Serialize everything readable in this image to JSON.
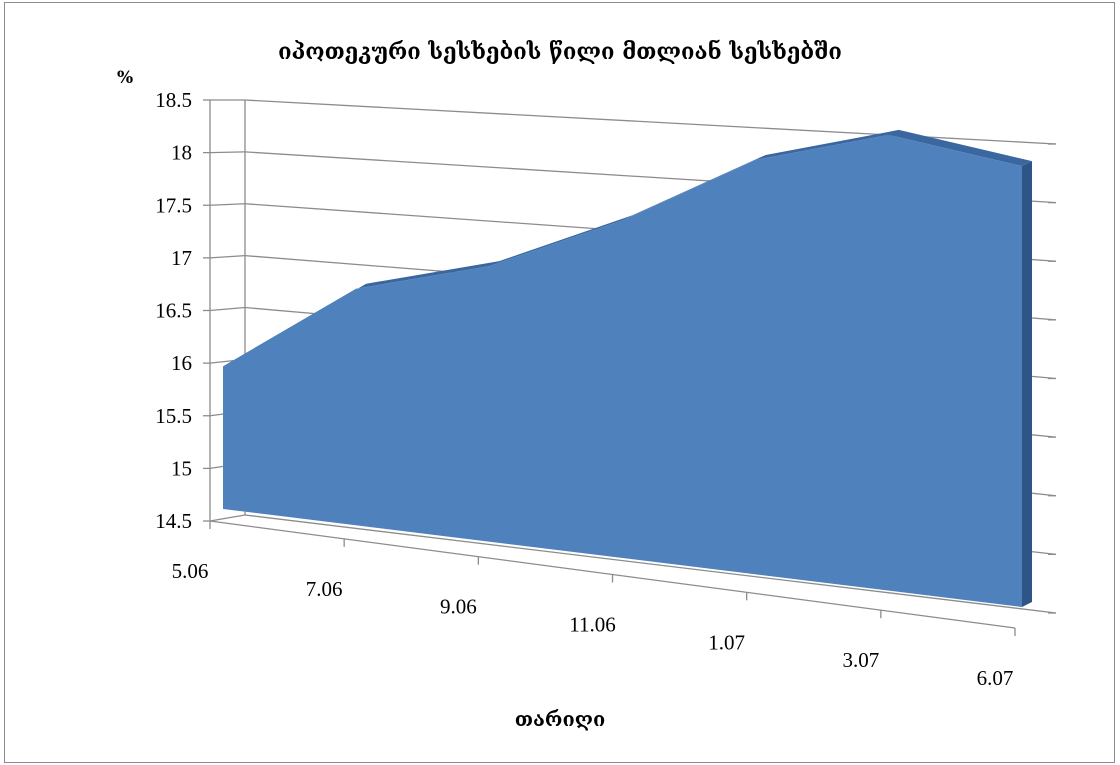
{
  "chart_data": {
    "type": "area",
    "title": "იპოთეკური სესხების წილი მთლიან სესხებში",
    "ylabel": "%",
    "xlabel": "თარიღი",
    "ylim": [
      14.5,
      18.5
    ],
    "y_ticks": [
      "14.5",
      "15",
      "15.5",
      "16",
      "16.5",
      "17",
      "17.5",
      "18",
      "18.5"
    ],
    "x_tick_labels": [
      "5.06",
      "7.06",
      "9.06",
      "11.06",
      "1.07",
      "3.07",
      "6.07"
    ],
    "x": [
      "5.06",
      "7.06",
      "9.06",
      "11.06",
      "1.07",
      "3.07",
      "6.07"
    ],
    "values": [
      16.0,
      16.9,
      17.2,
      17.7,
      18.3,
      18.55,
      18.3
    ],
    "grid": true,
    "legend": "none",
    "style": "3d",
    "colors": {
      "area": "#4f81bd",
      "area_top": "#3b67a0",
      "area_side": "#2f5486",
      "grid": "#8c8c8c"
    }
  }
}
